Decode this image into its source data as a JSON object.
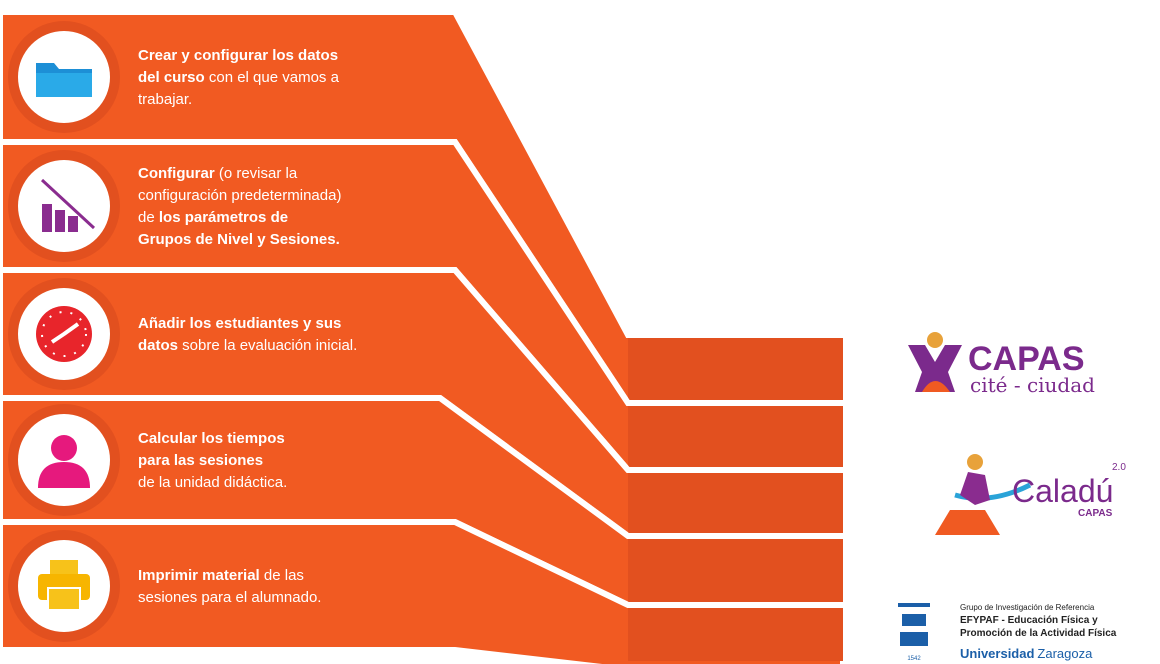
{
  "steps": [
    {
      "lines": [
        [
          {
            "text": "Crear y configurar los datos",
            "bold": true
          }
        ],
        [
          {
            "text": "del curso",
            "bold": true
          },
          {
            "text": " con el que vamos a",
            "bold": false
          }
        ],
        [
          {
            "text": "trabajar.",
            "bold": false
          }
        ]
      ]
    },
    {
      "lines": [
        [
          {
            "text": "Configurar",
            "bold": true
          },
          {
            "text": " (o revisar la",
            "bold": false
          }
        ],
        [
          {
            "text": "configuración predeterminada)",
            "bold": false
          }
        ],
        [
          {
            "text": "de ",
            "bold": false
          },
          {
            "text": "los parámetros de",
            "bold": true
          }
        ],
        [
          {
            "text": "Grupos de Nivel y Sesiones.",
            "bold": true
          }
        ]
      ]
    },
    {
      "lines": [
        [
          {
            "text": "Añadir los estudiantes y sus",
            "bold": true
          }
        ],
        [
          {
            "text": "datos",
            "bold": true
          },
          {
            "text": " sobre la evaluación inicial.",
            "bold": false
          }
        ]
      ]
    },
    {
      "lines": [
        [
          {
            "text": "Calcular los tiempos",
            "bold": true
          }
        ],
        [
          {
            "text": "para las sesiones",
            "bold": true
          }
        ],
        [
          {
            "text": "de la unidad didáctica.",
            "bold": false
          }
        ]
      ]
    },
    {
      "lines": [
        [
          {
            "text": "Imprimir material",
            "bold": true
          },
          {
            "text": " de las",
            "bold": false
          }
        ],
        [
          {
            "text": "sesiones para el alumnado.",
            "bold": false
          }
        ]
      ]
    }
  ],
  "logos": {
    "capas": {
      "title": "CAPAS",
      "subtitle": "cité - ciudad"
    },
    "caladu": {
      "title": "Caladú",
      "version": "2.0",
      "subtitle": "CAPAS"
    },
    "unizar": {
      "line1": "Grupo de Investigación de Referencia",
      "line2": "EFYPAF - Educación Física y",
      "line3": "Promoción de la Actividad Física",
      "name_bold": "Universidad",
      "name": "Zaragoza",
      "year": "1542"
    }
  }
}
